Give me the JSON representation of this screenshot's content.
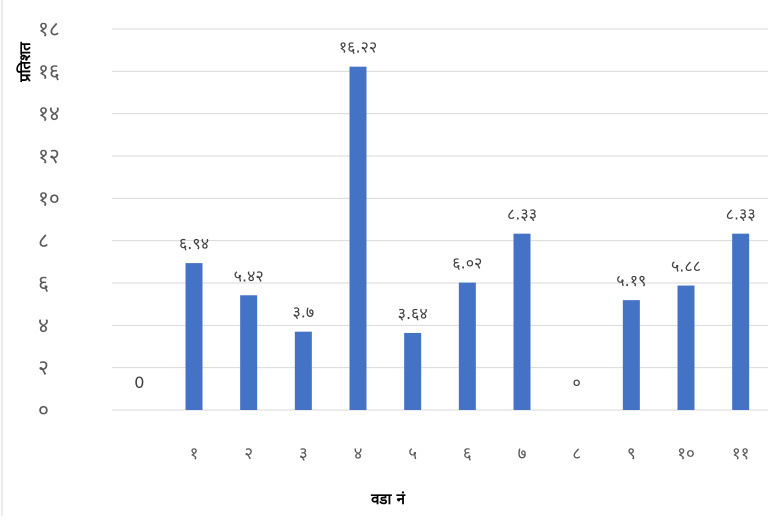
{
  "chart_data": {
    "type": "bar",
    "ylabel": "प्रतिशत",
    "xlabel": "वडा नं",
    "ylim": [
      0,
      18
    ],
    "yticks": [
      0,
      2,
      4,
      6,
      8,
      10,
      12,
      14,
      16,
      18
    ],
    "ytick_labels": [
      "०",
      "२",
      "४",
      "६",
      "८",
      "१०",
      "१२",
      "१४",
      "१६",
      "१८"
    ],
    "categories": [
      "",
      "१",
      "२",
      "३",
      "४",
      "५",
      "६",
      "७",
      "८",
      "९",
      "१०",
      "११"
    ],
    "values": [
      0,
      6.94,
      5.42,
      3.7,
      16.22,
      3.64,
      6.02,
      8.33,
      0,
      5.19,
      5.88,
      8.33
    ],
    "data_labels": [
      "0",
      "६.९४",
      "५.४२",
      "३.७",
      "१६.२२",
      "३.६४",
      "६.०२",
      "८.३३",
      "०",
      "५.१९",
      "५.८८",
      "८.३३"
    ],
    "bar_color": "#4472C4",
    "grid": true,
    "gridline_color": "#D9D9D9",
    "legend": "none"
  }
}
